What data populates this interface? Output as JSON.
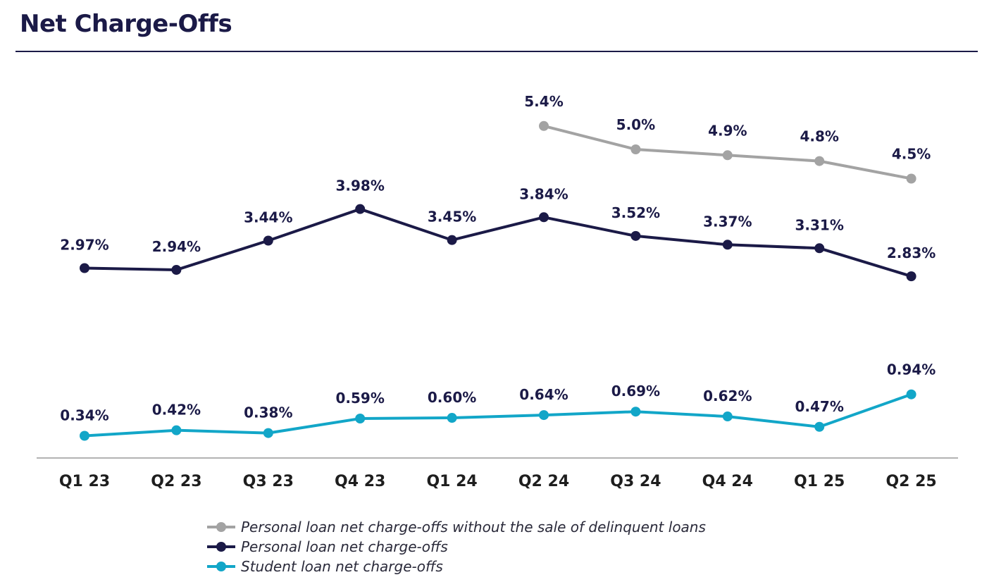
{
  "header": {
    "title": "Net Charge-Offs"
  },
  "chart_data": {
    "type": "line",
    "title": "Net Charge-Offs",
    "xlabel": "",
    "ylabel": "",
    "grid": false,
    "legend_position": "bottom",
    "categories": [
      "Q1 23",
      "Q2 23",
      "Q3 23",
      "Q4 23",
      "Q1 24",
      "Q2 24",
      "Q3 24",
      "Q4 24",
      "Q1 25",
      "Q2 25"
    ],
    "series": [
      {
        "name": "Personal loan net charge-offs without the sale of delinquent loans",
        "color": "#a3a3a3",
        "values": [
          null,
          null,
          null,
          null,
          null,
          5.4,
          5.0,
          4.9,
          4.8,
          4.5
        ],
        "labels": [
          null,
          null,
          null,
          null,
          null,
          "5.4%",
          "5.0%",
          "4.9%",
          "4.8%",
          "4.5%"
        ]
      },
      {
        "name": "Personal loan net charge-offs",
        "color": "#1b1a47",
        "values": [
          2.97,
          2.94,
          3.44,
          3.98,
          3.45,
          3.84,
          3.52,
          3.37,
          3.31,
          2.83
        ],
        "labels": [
          "2.97%",
          "2.94%",
          "3.44%",
          "3.98%",
          "3.45%",
          "3.84%",
          "3.52%",
          "3.37%",
          "3.31%",
          "2.83%"
        ]
      },
      {
        "name": "Student loan net charge-offs",
        "color": "#12a6c8",
        "values": [
          0.34,
          0.42,
          0.38,
          0.59,
          0.6,
          0.64,
          0.69,
          0.62,
          0.47,
          0.94
        ],
        "labels": [
          "0.34%",
          "0.42%",
          "0.38%",
          "0.59%",
          "0.60%",
          "0.64%",
          "0.69%",
          "0.62%",
          "0.47%",
          "0.94%"
        ]
      }
    ]
  }
}
